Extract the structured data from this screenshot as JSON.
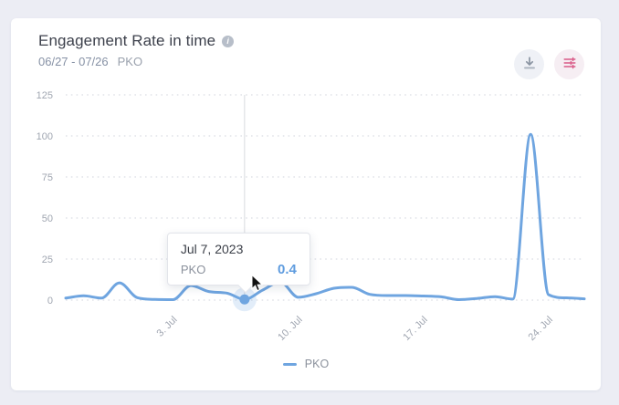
{
  "header": {
    "title": "Engagement Rate in time",
    "date_range": "06/27 - 07/26",
    "profile_name": "PKO"
  },
  "tooltip": {
    "date": "Jul 7, 2023",
    "series": "PKO",
    "value": "0.4"
  },
  "legend": {
    "label": "PKO"
  },
  "colors": {
    "line_blue": "#6fa5e0",
    "accent_pink": "#d95a87",
    "icon_gray": "#8a94a2",
    "grid": "#d2d5dd",
    "axis_text": "#a0a6b1",
    "page_background": "#ecedf4"
  },
  "chart_data": {
    "type": "line",
    "title": "Engagement Rate in time",
    "x": [
      "06/27",
      "06/28",
      "06/29",
      "06/30",
      "07/01",
      "07/02",
      "07/03",
      "07/04",
      "07/05",
      "07/06",
      "07/07",
      "07/08",
      "07/09",
      "07/10",
      "07/11",
      "07/12",
      "07/13",
      "07/14",
      "07/15",
      "07/16",
      "07/17",
      "07/18",
      "07/19",
      "07/20",
      "07/21",
      "07/22",
      "07/23",
      "07/24",
      "07/25",
      "07/26"
    ],
    "series": [
      {
        "name": "PKO",
        "color": "#6fa5e0",
        "values": [
          1.2,
          2.6,
          1.2,
          10.5,
          1.5,
          0.4,
          0.3,
          8.9,
          5.2,
          4.3,
          0.4,
          6,
          11,
          1.7,
          3.9,
          7.2,
          7.8,
          3.5,
          2.8,
          2.8,
          2.5,
          2,
          0.3,
          1,
          2.1,
          0.6,
          101,
          3.3,
          1.4,
          0.8
        ]
      }
    ],
    "ylim": [
      0,
      125
    ],
    "yticks": [
      0,
      25,
      50,
      75,
      100,
      125
    ],
    "xticks": [
      {
        "index": 6,
        "label": "3. Jul"
      },
      {
        "index": 13,
        "label": "10. Jul"
      },
      {
        "index": 20,
        "label": "17. Jul"
      },
      {
        "index": 27,
        "label": "24. Jul"
      }
    ],
    "grid": "horizontal-dotted",
    "legend_position": "bottom",
    "highlight": {
      "index": 10,
      "date_label": "Jul 7, 2023",
      "series": "PKO",
      "value": 0.4
    }
  }
}
